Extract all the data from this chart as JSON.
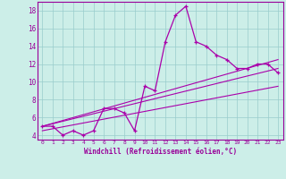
{
  "xlabel": "Windchill (Refroidissement éolien,°C)",
  "ylabel": "",
  "background_color": "#cceee8",
  "line_color": "#aa00aa",
  "xlim": [
    -0.5,
    23.5
  ],
  "ylim": [
    3.5,
    19.0
  ],
  "yticks": [
    4,
    6,
    8,
    10,
    12,
    14,
    16,
    18
  ],
  "xticks": [
    0,
    1,
    2,
    3,
    4,
    5,
    6,
    7,
    8,
    9,
    10,
    11,
    12,
    13,
    14,
    15,
    16,
    17,
    18,
    19,
    20,
    21,
    22,
    23
  ],
  "hours": [
    0,
    1,
    2,
    3,
    4,
    5,
    6,
    7,
    8,
    9,
    10,
    11,
    12,
    13,
    14,
    15,
    16,
    17,
    18,
    19,
    20,
    21,
    22,
    23
  ],
  "windchill": [
    5.0,
    5.0,
    4.0,
    4.5,
    4.0,
    4.5,
    7.0,
    7.0,
    6.5,
    4.5,
    9.5,
    9.0,
    14.5,
    17.5,
    18.5,
    14.5,
    14.0,
    13.0,
    12.5,
    11.5,
    11.5,
    12.0,
    12.0,
    11.0
  ],
  "line1_x": [
    0,
    23
  ],
  "line1_y": [
    4.5,
    9.5
  ],
  "line2_x": [
    0,
    23
  ],
  "line2_y": [
    5.0,
    12.5
  ],
  "line3_x": [
    0,
    23
  ],
  "line3_y": [
    5.0,
    11.5
  ],
  "font_color": "#990099",
  "grid_color": "#99cccc"
}
